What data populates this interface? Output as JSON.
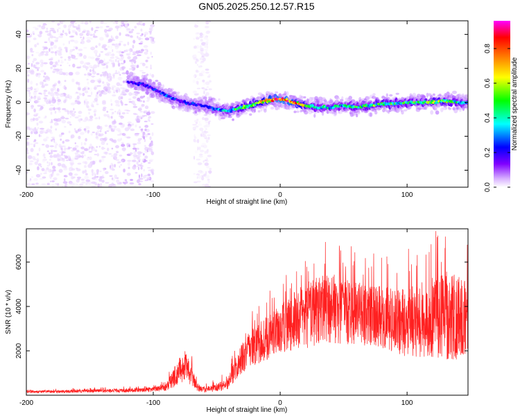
{
  "figure": {
    "title": "GN05.2025.250.12.57.R15"
  },
  "chart_data": [
    {
      "type": "heatmap",
      "title": "GN05.2025.250.12.57.R15",
      "xlabel": "Height of straight line (km)",
      "ylabel": "Frequency (Hz)",
      "xlim": [
        -200,
        148
      ],
      "ylim": [
        -50,
        48
      ],
      "xticks": [
        -200,
        -100,
        0,
        100
      ],
      "xtick_labels": [
        "-200",
        "-100",
        "0",
        "100"
      ],
      "yticks": [
        -40,
        -20,
        0,
        20,
        40
      ],
      "ytick_labels": [
        "-40",
        "-20",
        "0",
        "20",
        "40"
      ],
      "colorbar": {
        "label": "Normalized spectral amplitude",
        "range": [
          0,
          0.96
        ],
        "ticks": [
          0.0,
          0.2,
          0.4,
          0.6,
          0.8
        ],
        "tick_labels": [
          "0.0",
          "0.2",
          "0.4",
          "0.6",
          "0.8"
        ],
        "colormap": [
          "#ffffff",
          "#d9b3ff",
          "#8000ff",
          "#0000ff",
          "#00ffff",
          "#00ff00",
          "#ffff00",
          "#ff8000",
          "#ff0000",
          "#ff00ff"
        ]
      },
      "ridge": {
        "name": "dominant frequency trace",
        "x": [
          -120,
          -110,
          -100,
          -90,
          -80,
          -70,
          -60,
          -50,
          -40,
          -30,
          -20,
          -10,
          0,
          10,
          20,
          30,
          40,
          50,
          60,
          70,
          80,
          90,
          100,
          110,
          120,
          130,
          140,
          148
        ],
        "y": [
          12,
          11,
          8,
          4,
          1,
          -1,
          -2,
          -4,
          -5,
          -3,
          -1,
          1,
          2,
          0,
          -2,
          -3,
          -3,
          -2,
          -3,
          -2,
          -1,
          -1,
          0,
          0,
          0,
          1,
          0,
          0
        ],
        "amplitude": [
          0.25,
          0.3,
          0.3,
          0.35,
          0.3,
          0.3,
          0.3,
          0.35,
          0.45,
          0.55,
          0.6,
          0.75,
          0.85,
          0.8,
          0.6,
          0.45,
          0.45,
          0.45,
          0.5,
          0.5,
          0.55,
          0.5,
          0.5,
          0.5,
          0.55,
          0.6,
          0.45,
          0.4
        ]
      },
      "noise_regions": [
        {
          "name": "broadband low-amplitude noise",
          "x_range": [
            -200,
            -100
          ],
          "y_range": [
            -50,
            48
          ],
          "amplitude": 0.05
        },
        {
          "name": "vertical noise streak",
          "x_range": [
            -68,
            -55
          ],
          "y_range": [
            -50,
            48
          ],
          "amplitude": 0.03
        }
      ]
    },
    {
      "type": "line",
      "xlabel": "Height of straight line (km)",
      "ylabel": "SNR (10 * v/v)",
      "xlim": [
        -200,
        148
      ],
      "ylim": [
        0,
        7500
      ],
      "xticks": [
        -200,
        -100,
        0,
        100
      ],
      "xtick_labels": [
        "-200",
        "-100",
        "0",
        "100"
      ],
      "yticks": [
        2000,
        4000,
        6000
      ],
      "ytick_labels": [
        "2000",
        "4000",
        "6000"
      ],
      "series": [
        {
          "name": "SNR",
          "color": "#ff2020",
          "envelope_x": [
            -200,
            -180,
            -160,
            -140,
            -120,
            -100,
            -90,
            -85,
            -80,
            -75,
            -70,
            -65,
            -60,
            -55,
            -50,
            -45,
            -40,
            -35,
            -30,
            -25,
            -20,
            -10,
            0,
            10,
            20,
            30,
            40,
            50,
            60,
            70,
            80,
            90,
            100,
            110,
            120,
            130,
            140,
            148
          ],
          "envelope_mean": [
            150,
            160,
            180,
            200,
            220,
            260,
            350,
            700,
            1100,
            1300,
            900,
            350,
            250,
            300,
            350,
            450,
            650,
            1200,
            1700,
            2000,
            2200,
            2600,
            3000,
            3300,
            3600,
            3800,
            3900,
            3800,
            3700,
            3600,
            3500,
            3400,
            3300,
            3400,
            3500,
            3600,
            3500,
            3500
          ],
          "envelope_spread": [
            60,
            60,
            70,
            80,
            90,
            110,
            150,
            400,
            600,
            700,
            500,
            180,
            120,
            150,
            200,
            250,
            350,
            500,
            700,
            800,
            900,
            1000,
            1100,
            1300,
            1500,
            1600,
            1600,
            1500,
            1400,
            1400,
            1400,
            1500,
            1600,
            1700,
            1800,
            2000,
            1900,
            1700
          ],
          "peak_max": [
            7500,
            6900
          ]
        }
      ]
    }
  ]
}
